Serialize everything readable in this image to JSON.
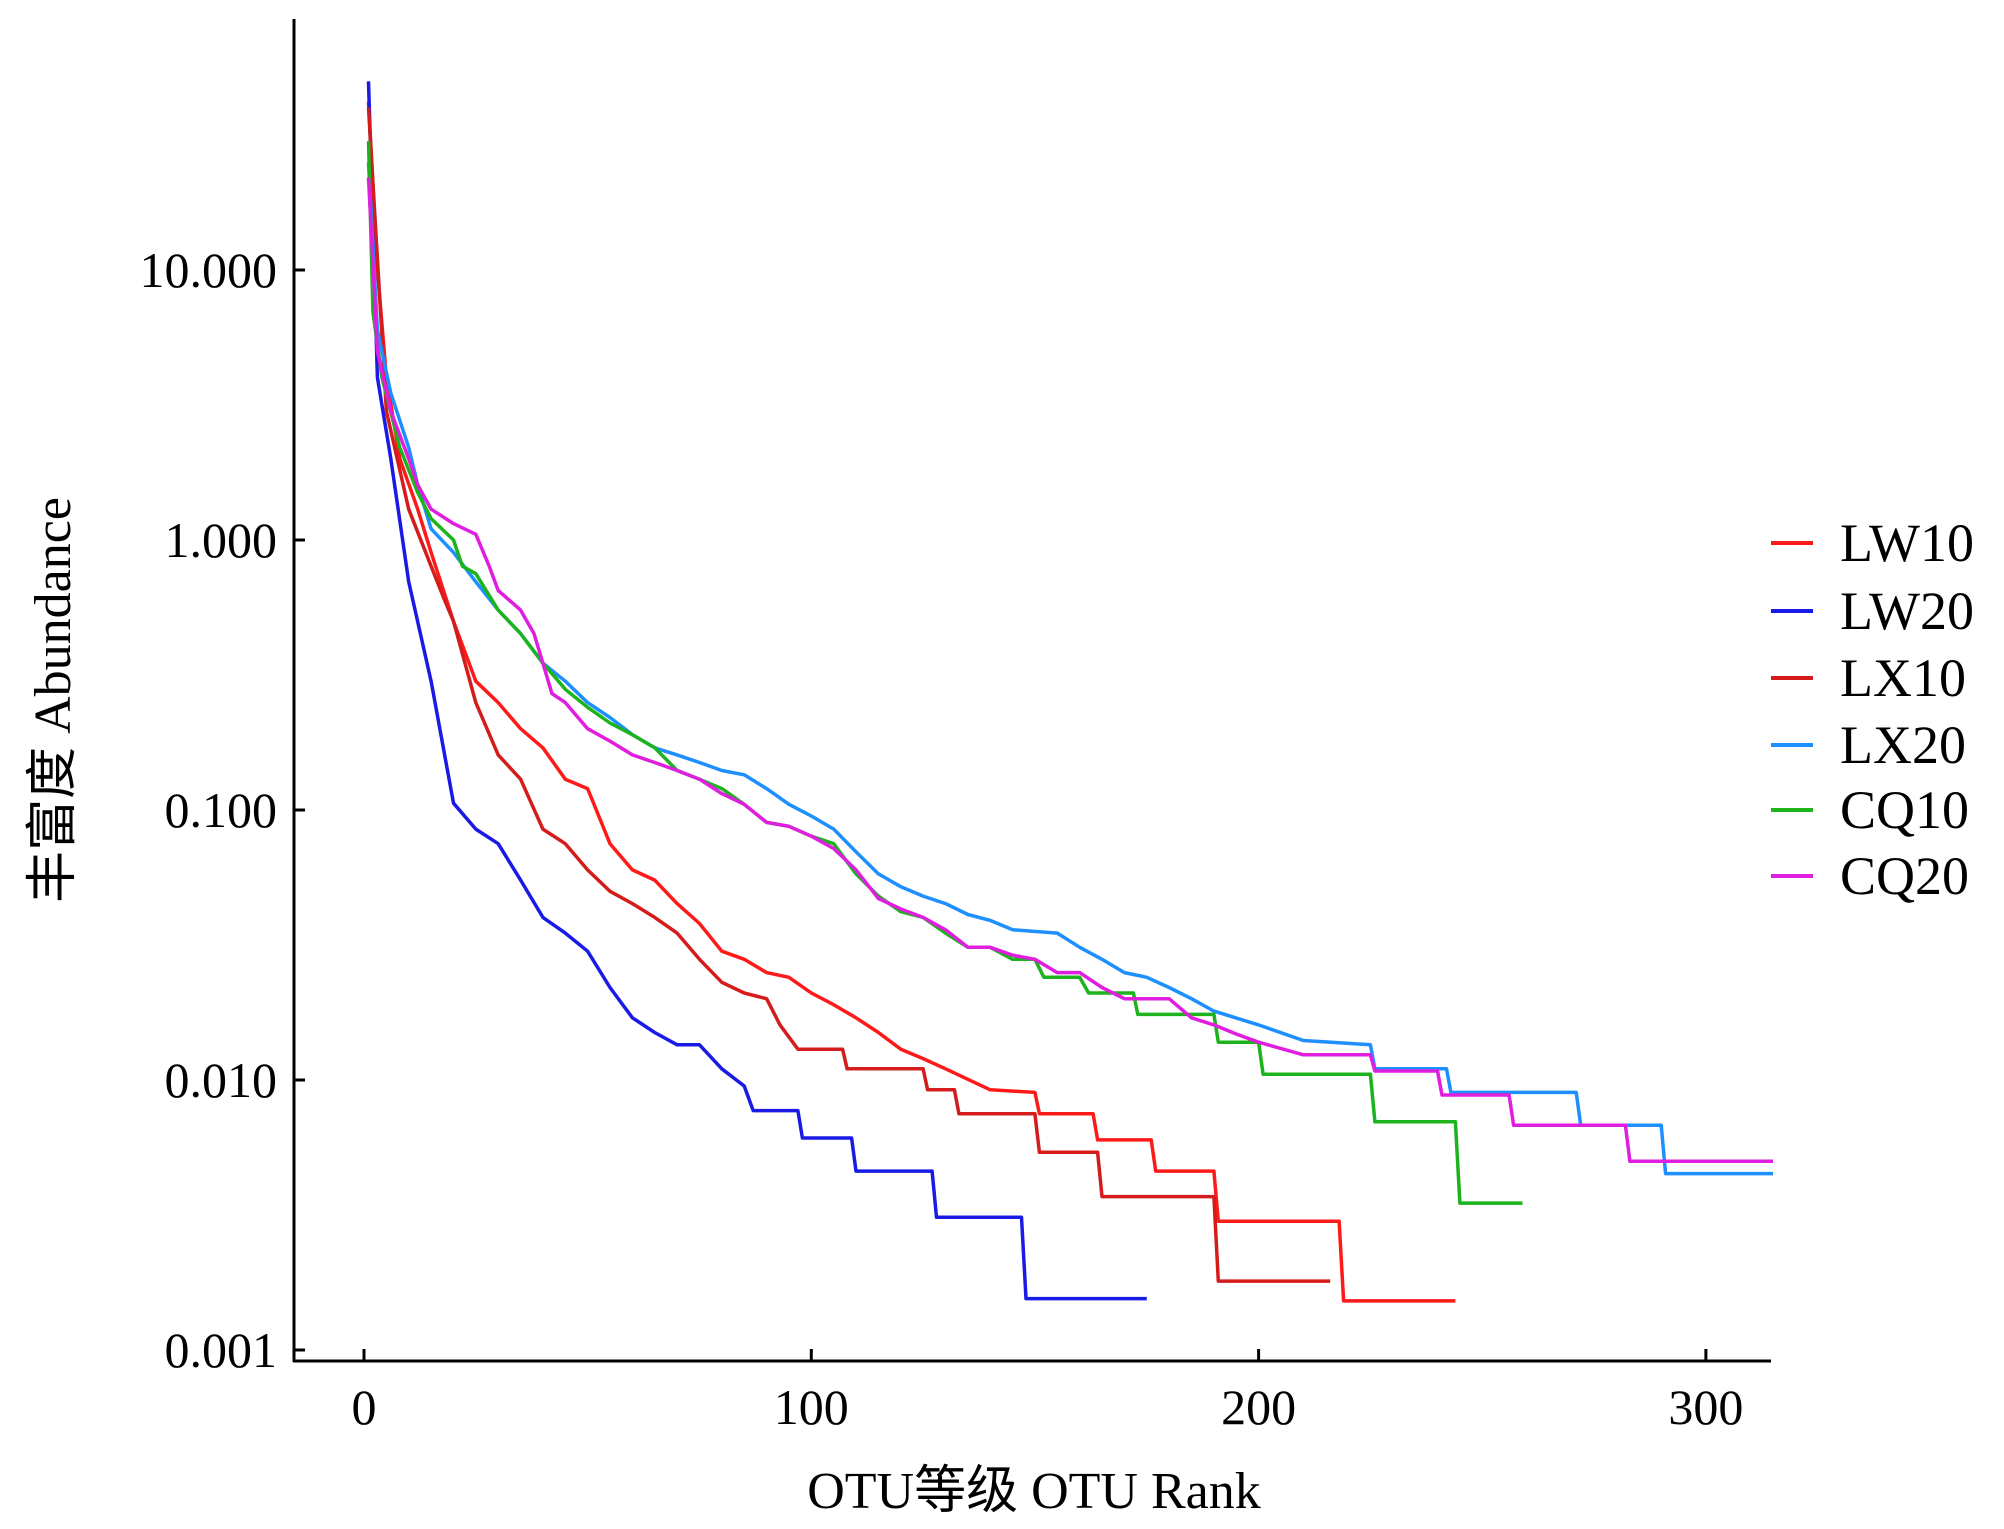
{
  "chart_data": {
    "type": "line",
    "title": "",
    "xlabel": "OTU等级 OTU Rank",
    "ylabel": "丰富度 Abundance",
    "xlim": [
      -16,
      315
    ],
    "ylim": [
      0.001,
      70
    ],
    "yscale": "log",
    "grid": false,
    "legend_position": "right",
    "x_ticks": [
      0,
      100,
      200,
      300
    ],
    "x_tick_labels": [
      "0",
      "100",
      "200",
      "300"
    ],
    "y_ticks": [
      10,
      1,
      0.1,
      0.01,
      0.001
    ],
    "y_tick_labels": [
      "10.000",
      "1.000",
      "0.100",
      "0.010",
      "0.001"
    ],
    "series": [
      {
        "name": "LW10",
        "color": "#ff1a1a",
        "points": [
          [
            1,
            42
          ],
          [
            3,
            10
          ],
          [
            5,
            4
          ],
          [
            8,
            2
          ],
          [
            12,
            1.3
          ],
          [
            15,
            0.9
          ],
          [
            20,
            0.5
          ],
          [
            25,
            0.3
          ],
          [
            30,
            0.25
          ],
          [
            35,
            0.2
          ],
          [
            40,
            0.17
          ],
          [
            45,
            0.13
          ],
          [
            50,
            0.12
          ],
          [
            55,
            0.075
          ],
          [
            60,
            0.06
          ],
          [
            65,
            0.055
          ],
          [
            70,
            0.045
          ],
          [
            75,
            0.038
          ],
          [
            80,
            0.03
          ],
          [
            85,
            0.028
          ],
          [
            90,
            0.025
          ],
          [
            95,
            0.024
          ],
          [
            100,
            0.021
          ],
          [
            105,
            0.019
          ],
          [
            110,
            0.017
          ],
          [
            115,
            0.015
          ],
          [
            120,
            0.013
          ],
          [
            125,
            0.012
          ],
          [
            130,
            0.011
          ],
          [
            140,
            0.0092
          ],
          [
            150,
            0.009
          ],
          [
            151,
            0.0075
          ],
          [
            163,
            0.0075
          ],
          [
            164,
            0.006
          ],
          [
            176,
            0.006
          ],
          [
            177,
            0.0046
          ],
          [
            190,
            0.0046
          ],
          [
            191,
            0.003
          ],
          [
            218,
            0.003
          ],
          [
            219,
            0.00152
          ],
          [
            244,
            0.00152
          ]
        ]
      },
      {
        "name": "LW20",
        "color": "#1a1ae6",
        "points": [
          [
            1,
            50
          ],
          [
            3,
            4
          ],
          [
            6,
            2
          ],
          [
            10,
            0.7
          ],
          [
            15,
            0.3
          ],
          [
            20,
            0.106
          ],
          [
            25,
            0.085
          ],
          [
            30,
            0.075
          ],
          [
            35,
            0.055
          ],
          [
            40,
            0.04
          ],
          [
            45,
            0.035
          ],
          [
            50,
            0.03
          ],
          [
            55,
            0.022
          ],
          [
            60,
            0.017
          ],
          [
            65,
            0.015
          ],
          [
            70,
            0.0135
          ],
          [
            75,
            0.0135
          ],
          [
            80,
            0.011
          ],
          [
            85,
            0.0095
          ],
          [
            87,
            0.0077
          ],
          [
            97,
            0.0077
          ],
          [
            98,
            0.0061
          ],
          [
            109,
            0.0061
          ],
          [
            110,
            0.0046
          ],
          [
            127,
            0.0046
          ],
          [
            128,
            0.0031
          ],
          [
            147,
            0.0031
          ],
          [
            148,
            0.00155
          ],
          [
            175,
            0.00155
          ]
        ]
      },
      {
        "name": "LX10",
        "color": "#d41c1c",
        "points": [
          [
            1,
            40
          ],
          [
            5,
            3
          ],
          [
            10,
            1.3
          ],
          [
            15,
            0.8
          ],
          [
            18,
            0.6
          ],
          [
            20,
            0.5
          ],
          [
            25,
            0.25
          ],
          [
            30,
            0.16
          ],
          [
            35,
            0.13
          ],
          [
            40,
            0.085
          ],
          [
            45,
            0.075
          ],
          [
            50,
            0.06
          ],
          [
            55,
            0.05
          ],
          [
            60,
            0.045
          ],
          [
            65,
            0.04
          ],
          [
            70,
            0.035
          ],
          [
            75,
            0.028
          ],
          [
            80,
            0.023
          ],
          [
            85,
            0.021
          ],
          [
            90,
            0.02
          ],
          [
            93,
            0.016
          ],
          [
            97,
            0.013
          ],
          [
            107,
            0.013
          ],
          [
            108,
            0.011
          ],
          [
            125,
            0.011
          ],
          [
            126,
            0.0092
          ],
          [
            132,
            0.0092
          ],
          [
            133,
            0.0075
          ],
          [
            150,
            0.0075
          ],
          [
            151,
            0.0054
          ],
          [
            164,
            0.0054
          ],
          [
            165,
            0.0037
          ],
          [
            190,
            0.0037
          ],
          [
            191,
            0.0018
          ],
          [
            216,
            0.0018
          ]
        ]
      },
      {
        "name": "LX20",
        "color": "#1e8fff",
        "points": [
          [
            1,
            25
          ],
          [
            3,
            6
          ],
          [
            6,
            3.5
          ],
          [
            10,
            2.2
          ],
          [
            12,
            1.6
          ],
          [
            15,
            1.1
          ],
          [
            20,
            0.9
          ],
          [
            25,
            0.7
          ],
          [
            30,
            0.55
          ],
          [
            35,
            0.45
          ],
          [
            40,
            0.35
          ],
          [
            45,
            0.3
          ],
          [
            50,
            0.25
          ],
          [
            55,
            0.22
          ],
          [
            60,
            0.19
          ],
          [
            65,
            0.17
          ],
          [
            70,
            0.16
          ],
          [
            75,
            0.15
          ],
          [
            80,
            0.14
          ],
          [
            85,
            0.135
          ],
          [
            90,
            0.12
          ],
          [
            95,
            0.105
          ],
          [
            100,
            0.095
          ],
          [
            105,
            0.085
          ],
          [
            110,
            0.07
          ],
          [
            115,
            0.058
          ],
          [
            120,
            0.052
          ],
          [
            125,
            0.048
          ],
          [
            130,
            0.045
          ],
          [
            135,
            0.041
          ],
          [
            140,
            0.039
          ],
          [
            145,
            0.036
          ],
          [
            155,
            0.035
          ],
          [
            160,
            0.031
          ],
          [
            165,
            0.028
          ],
          [
            170,
            0.025
          ],
          [
            175,
            0.024
          ],
          [
            180,
            0.022
          ],
          [
            185,
            0.02
          ],
          [
            190,
            0.018
          ],
          [
            200,
            0.016
          ],
          [
            210,
            0.014
          ],
          [
            225,
            0.0135
          ],
          [
            226,
            0.011
          ],
          [
            242,
            0.011
          ],
          [
            243,
            0.009
          ],
          [
            271,
            0.009
          ],
          [
            272,
            0.0068
          ],
          [
            290,
            0.0068
          ],
          [
            291,
            0.0045
          ],
          [
            315,
            0.0045
          ]
        ]
      },
      {
        "name": "CQ10",
        "color": "#1db31d",
        "points": [
          [
            1,
            30
          ],
          [
            2,
            7
          ],
          [
            4,
            4
          ],
          [
            8,
            2.2
          ],
          [
            12,
            1.5
          ],
          [
            15,
            1.2
          ],
          [
            20,
            1.0
          ],
          [
            22,
            0.8
          ],
          [
            25,
            0.75
          ],
          [
            30,
            0.55
          ],
          [
            35,
            0.45
          ],
          [
            40,
            0.35
          ],
          [
            45,
            0.28
          ],
          [
            50,
            0.24
          ],
          [
            55,
            0.21
          ],
          [
            60,
            0.19
          ],
          [
            65,
            0.17
          ],
          [
            70,
            0.14
          ],
          [
            75,
            0.13
          ],
          [
            80,
            0.12
          ],
          [
            85,
            0.105
          ],
          [
            90,
            0.09
          ],
          [
            95,
            0.087
          ],
          [
            100,
            0.08
          ],
          [
            105,
            0.075
          ],
          [
            110,
            0.058
          ],
          [
            115,
            0.048
          ],
          [
            120,
            0.042
          ],
          [
            125,
            0.04
          ],
          [
            130,
            0.035
          ],
          [
            135,
            0.031
          ],
          [
            140,
            0.031
          ],
          [
            145,
            0.028
          ],
          [
            150,
            0.028
          ],
          [
            152,
            0.024
          ],
          [
            160,
            0.024
          ],
          [
            162,
            0.021
          ],
          [
            172,
            0.021
          ],
          [
            173,
            0.0175
          ],
          [
            190,
            0.0175
          ],
          [
            191,
            0.0138
          ],
          [
            200,
            0.0138
          ],
          [
            201,
            0.0105
          ],
          [
            225,
            0.0105
          ],
          [
            226,
            0.007
          ],
          [
            244,
            0.007
          ],
          [
            245,
            0.0035
          ],
          [
            259,
            0.0035
          ]
        ]
      },
      {
        "name": "CQ20",
        "color": "#e01ee0",
        "points": [
          [
            1,
            22
          ],
          [
            3,
            5
          ],
          [
            6,
            3
          ],
          [
            10,
            2
          ],
          [
            12,
            1.6
          ],
          [
            15,
            1.3
          ],
          [
            20,
            1.15
          ],
          [
            25,
            1.05
          ],
          [
            28,
            0.8
          ],
          [
            30,
            0.65
          ],
          [
            35,
            0.55
          ],
          [
            38,
            0.45
          ],
          [
            40,
            0.35
          ],
          [
            42,
            0.27
          ],
          [
            45,
            0.25
          ],
          [
            50,
            0.2
          ],
          [
            55,
            0.18
          ],
          [
            60,
            0.16
          ],
          [
            65,
            0.15
          ],
          [
            70,
            0.14
          ],
          [
            75,
            0.13
          ],
          [
            80,
            0.115
          ],
          [
            85,
            0.105
          ],
          [
            90,
            0.09
          ],
          [
            95,
            0.087
          ],
          [
            100,
            0.08
          ],
          [
            105,
            0.072
          ],
          [
            110,
            0.06
          ],
          [
            115,
            0.047
          ],
          [
            120,
            0.043
          ],
          [
            125,
            0.04
          ],
          [
            130,
            0.036
          ],
          [
            135,
            0.031
          ],
          [
            140,
            0.031
          ],
          [
            145,
            0.029
          ],
          [
            150,
            0.028
          ],
          [
            155,
            0.025
          ],
          [
            160,
            0.025
          ],
          [
            165,
            0.022
          ],
          [
            170,
            0.02
          ],
          [
            180,
            0.02
          ],
          [
            185,
            0.017
          ],
          [
            190,
            0.016
          ],
          [
            195,
            0.0148
          ],
          [
            200,
            0.0138
          ],
          [
            210,
            0.0124
          ],
          [
            225,
            0.0124
          ],
          [
            226,
            0.0108
          ],
          [
            240,
            0.0108
          ],
          [
            241,
            0.0088
          ],
          [
            256,
            0.0088
          ],
          [
            257,
            0.0068
          ],
          [
            282,
            0.0068
          ],
          [
            283,
            0.005
          ],
          [
            315,
            0.005
          ]
        ]
      }
    ]
  }
}
